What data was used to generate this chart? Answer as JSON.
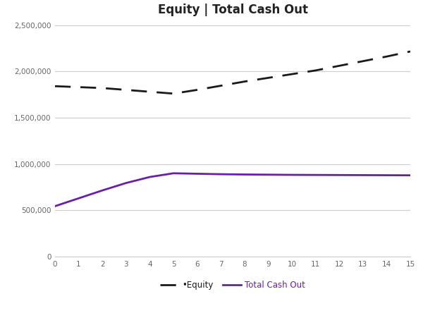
{
  "title": "Equity | Total Cash Out",
  "x": [
    0,
    1,
    2,
    3,
    4,
    5,
    6,
    7,
    8,
    9,
    10,
    11,
    12,
    13,
    14,
    15
  ],
  "equity": [
    1840000,
    1830000,
    1820000,
    1800000,
    1780000,
    1760000,
    1800000,
    1845000,
    1890000,
    1930000,
    1970000,
    2010000,
    2060000,
    2110000,
    2160000,
    2215000
  ],
  "total_cash_out": [
    545000,
    630000,
    715000,
    795000,
    860000,
    900000,
    895000,
    890000,
    887000,
    885000,
    883000,
    882000,
    881000,
    880000,
    879000,
    878000
  ],
  "equity_color": "#1a1a1a",
  "cash_out_color": "#6a1faa",
  "equity_label": "•Equity",
  "cash_out_label": "Total Cash Out",
  "xlim": [
    0,
    15
  ],
  "ylim": [
    0,
    2500000
  ],
  "yticks": [
    0,
    500000,
    1000000,
    1500000,
    2000000,
    2500000
  ],
  "xticks": [
    0,
    1,
    2,
    3,
    4,
    5,
    6,
    7,
    8,
    9,
    10,
    11,
    12,
    13,
    14,
    15
  ],
  "background_color": "#ffffff",
  "grid_color": "#cccccc",
  "title_fontsize": 12,
  "legend_fontsize": 8.5,
  "tick_fontsize": 7.5,
  "tick_color": "#666666"
}
